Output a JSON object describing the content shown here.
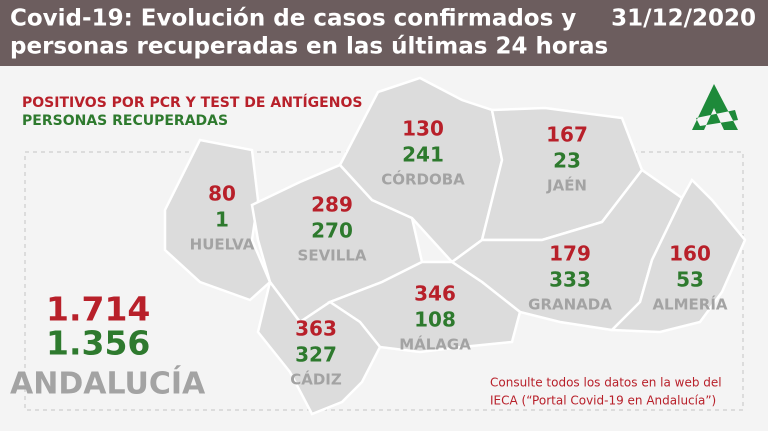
{
  "header": {
    "title": [
      "Covid-19: Evolución de casos confirmados y",
      "personas recuperadas en las últimas 24 horas"
    ],
    "date": "31/12/2020"
  },
  "legend": {
    "positives": "POSITIVOS POR PCR Y TEST DE ANTÍGENOS",
    "recovered": "PERSONAS RECUPERADAS"
  },
  "provinces": [
    {
      "name": "HUELVA",
      "positives": 80,
      "recovered": 1
    },
    {
      "name": "SEVILLA",
      "positives": 289,
      "recovered": 270
    },
    {
      "name": "CÓRDOBA",
      "positives": 130,
      "recovered": 241
    },
    {
      "name": "JAÉN",
      "positives": 167,
      "recovered": 23
    },
    {
      "name": "GRANADA",
      "positives": 179,
      "recovered": 333
    },
    {
      "name": "ALMERÍA",
      "positives": 160,
      "recovered": 53
    },
    {
      "name": "MÁLAGA",
      "positives": 346,
      "recovered": 108
    },
    {
      "name": "CÁDIZ",
      "positives": 363,
      "recovered": 327
    }
  ],
  "total": {
    "name": "ANDALUCÍA",
    "positives": "1.714",
    "recovered": "1.356"
  },
  "footer": [
    "Consulte todos los datos en la web del",
    "IECA (“Portal Covid-19 en Andalucía”)"
  ]
}
